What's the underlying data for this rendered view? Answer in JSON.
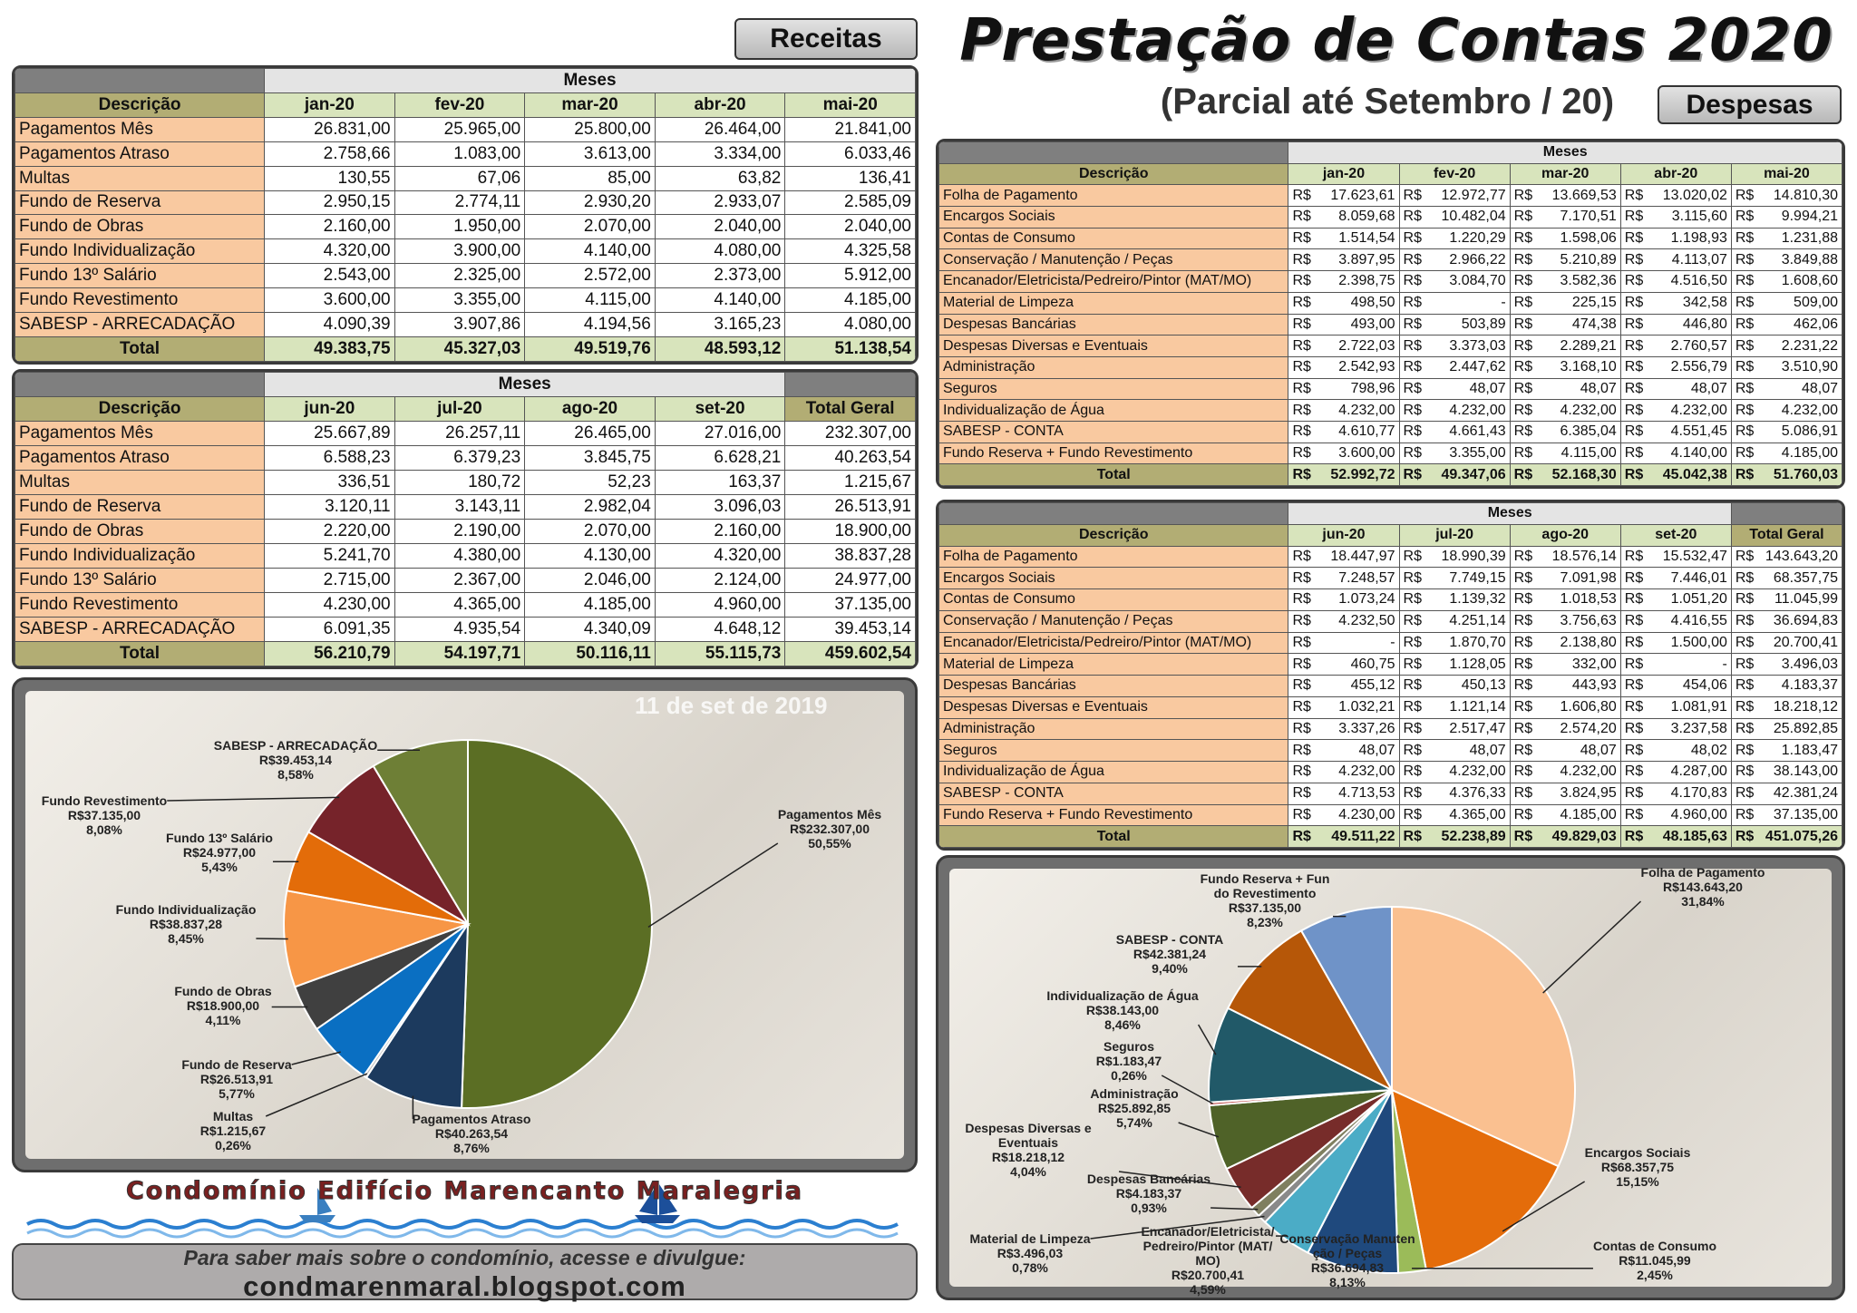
{
  "header": {
    "title": "Prestação de Contas 2020",
    "subtitle": "(Parcial até Setembro / 20)",
    "receitas_button": "Receitas",
    "despesas_button": "Despesas"
  },
  "receitas_tables": [
    {
      "group_label": "Meses",
      "description_header": "Descrição",
      "months": [
        "jan-20",
        "fev-20",
        "mar-20",
        "abr-20",
        "mai-20"
      ],
      "rows": [
        {
          "label": "Pagamentos Mês",
          "values": [
            "26.831,00",
            "25.965,00",
            "25.800,00",
            "26.464,00",
            "21.841,00"
          ]
        },
        {
          "label": "Pagamentos Atraso",
          "values": [
            "2.758,66",
            "1.083,00",
            "3.613,00",
            "3.334,00",
            "6.033,46"
          ]
        },
        {
          "label": "Multas",
          "values": [
            "130,55",
            "67,06",
            "85,00",
            "63,82",
            "136,41"
          ]
        },
        {
          "label": "Fundo de Reserva",
          "values": [
            "2.950,15",
            "2.774,11",
            "2.930,20",
            "2.933,07",
            "2.585,09"
          ]
        },
        {
          "label": "Fundo de Obras",
          "values": [
            "2.160,00",
            "1.950,00",
            "2.070,00",
            "2.040,00",
            "2.040,00"
          ]
        },
        {
          "label": "Fundo Individualização",
          "values": [
            "4.320,00",
            "3.900,00",
            "4.140,00",
            "4.080,00",
            "4.325,58"
          ]
        },
        {
          "label": "Fundo 13º Salário",
          "values": [
            "2.543,00",
            "2.325,00",
            "2.572,00",
            "2.373,00",
            "5.912,00"
          ]
        },
        {
          "label": "Fundo Revestimento",
          "values": [
            "3.600,00",
            "3.355,00",
            "4.115,00",
            "4.140,00",
            "4.185,00"
          ]
        },
        {
          "label": "SABESP - ARRECADAÇÃO",
          "values": [
            "4.090,39",
            "3.907,86",
            "4.194,56",
            "3.165,23",
            "4.080,00"
          ]
        }
      ],
      "total": {
        "label": "Total",
        "values": [
          "49.383,75",
          "45.327,03",
          "49.519,76",
          "48.593,12",
          "51.138,54"
        ]
      }
    },
    {
      "group_label": "Meses",
      "description_header": "Descrição",
      "months": [
        "jun-20",
        "jul-20",
        "ago-20",
        "set-20"
      ],
      "total_header": "Total Geral",
      "rows": [
        {
          "label": "Pagamentos Mês",
          "values": [
            "25.667,89",
            "26.257,11",
            "26.465,00",
            "27.016,00",
            "232.307,00"
          ]
        },
        {
          "label": "Pagamentos Atraso",
          "values": [
            "6.588,23",
            "6.379,23",
            "3.845,75",
            "6.628,21",
            "40.263,54"
          ]
        },
        {
          "label": "Multas",
          "values": [
            "336,51",
            "180,72",
            "52,23",
            "163,37",
            "1.215,67"
          ]
        },
        {
          "label": "Fundo de Reserva",
          "values": [
            "3.120,11",
            "3.143,11",
            "2.982,04",
            "3.096,03",
            "26.513,91"
          ]
        },
        {
          "label": "Fundo de Obras",
          "values": [
            "2.220,00",
            "2.190,00",
            "2.070,00",
            "2.160,00",
            "18.900,00"
          ]
        },
        {
          "label": "Fundo Individualização",
          "values": [
            "5.241,70",
            "4.380,00",
            "4.130,00",
            "4.320,00",
            "38.837,28"
          ]
        },
        {
          "label": "Fundo 13º Salário",
          "values": [
            "2.715,00",
            "2.367,00",
            "2.046,00",
            "2.124,00",
            "24.977,00"
          ]
        },
        {
          "label": "Fundo Revestimento",
          "values": [
            "4.230,00",
            "4.365,00",
            "4.185,00",
            "4.960,00",
            "37.135,00"
          ]
        },
        {
          "label": "SABESP - ARRECADAÇÃO",
          "values": [
            "6.091,35",
            "4.935,54",
            "4.340,09",
            "4.648,12",
            "39.453,14"
          ]
        }
      ],
      "total": {
        "label": "Total",
        "values": [
          "56.210,79",
          "54.197,71",
          "50.116,11",
          "55.115,73",
          "459.602,54"
        ]
      }
    }
  ],
  "despesas_tables": [
    {
      "group_label": "Meses",
      "description_header": "Descrição",
      "months": [
        "jan-20",
        "fev-20",
        "mar-20",
        "abr-20",
        "mai-20"
      ],
      "rows": [
        {
          "label": "Folha de Pagamento",
          "values": [
            "R$ 17.623,61",
            "R$ 12.972,77",
            "R$ 13.669,53",
            "R$ 13.020,02",
            "R$ 14.810,30"
          ]
        },
        {
          "label": "Encargos Sociais",
          "values": [
            "R$ 8.059,68",
            "R$ 10.482,04",
            "R$ 7.170,51",
            "R$ 3.115,60",
            "R$ 9.994,21"
          ]
        },
        {
          "label": "Contas de Consumo",
          "values": [
            "R$ 1.514,54",
            "R$ 1.220,29",
            "R$ 1.598,06",
            "R$ 1.198,93",
            "R$ 1.231,88"
          ]
        },
        {
          "label": "Conservação / Manutenção / Peças",
          "values": [
            "R$ 3.897,95",
            "R$ 2.966,22",
            "R$ 5.210,89",
            "R$ 4.113,07",
            "R$ 3.849,88"
          ]
        },
        {
          "label": "Encanador/Eletricista/Pedreiro/Pintor (MAT/MO)",
          "values": [
            "R$ 2.398,75",
            "R$ 3.084,70",
            "R$ 3.582,36",
            "R$ 4.516,50",
            "R$ 1.608,60"
          ]
        },
        {
          "label": "Material de Limpeza",
          "values": [
            "R$ 498,50",
            "R$ -",
            "R$ 225,15",
            "R$ 342,58",
            "R$ 509,00"
          ]
        },
        {
          "label": "Despesas Bancárias",
          "values": [
            "R$ 493,00",
            "R$ 503,89",
            "R$ 474,38",
            "R$ 446,80",
            "R$ 462,06"
          ]
        },
        {
          "label": "Despesas Diversas e Eventuais",
          "values": [
            "R$ 2.722,03",
            "R$ 3.373,03",
            "R$ 2.289,21",
            "R$ 2.760,57",
            "R$ 2.231,22"
          ]
        },
        {
          "label": "Administração",
          "values": [
            "R$ 2.542,93",
            "R$ 2.447,62",
            "R$ 3.168,10",
            "R$ 2.556,79",
            "R$ 3.510,90"
          ]
        },
        {
          "label": "Seguros",
          "values": [
            "R$ 798,96",
            "R$ 48,07",
            "R$ 48,07",
            "R$ 48,07",
            "R$ 48,07"
          ]
        },
        {
          "label": "Individualização de Água",
          "values": [
            "R$ 4.232,00",
            "R$ 4.232,00",
            "R$ 4.232,00",
            "R$ 4.232,00",
            "R$ 4.232,00"
          ]
        },
        {
          "label": "SABESP - CONTA",
          "values": [
            "R$ 4.610,77",
            "R$ 4.661,43",
            "R$ 6.385,04",
            "R$ 4.551,45",
            "R$ 5.086,91"
          ]
        },
        {
          "label": "Fundo Reserva + Fundo Revestimento",
          "values": [
            "R$ 3.600,00",
            "R$ 3.355,00",
            "R$ 4.115,00",
            "R$ 4.140,00",
            "R$ 4.185,00"
          ]
        }
      ],
      "total": {
        "label": "Total",
        "values": [
          "R$ 52.992,72",
          "R$ 49.347,06",
          "R$ 52.168,30",
          "R$ 45.042,38",
          "R$ 51.760,03"
        ]
      }
    },
    {
      "group_label": "Meses",
      "description_header": "Descrição",
      "months": [
        "jun-20",
        "jul-20",
        "ago-20",
        "set-20"
      ],
      "total_header": "Total Geral",
      "rows": [
        {
          "label": "Folha de Pagamento",
          "values": [
            "R$ 18.447,97",
            "R$ 18.990,39",
            "R$ 18.576,14",
            "R$ 15.532,47",
            "R$ 143.643,20"
          ]
        },
        {
          "label": "Encargos Sociais",
          "values": [
            "R$ 7.248,57",
            "R$ 7.749,15",
            "R$ 7.091,98",
            "R$ 7.446,01",
            "R$ 68.357,75"
          ]
        },
        {
          "label": "Contas de Consumo",
          "values": [
            "R$ 1.073,24",
            "R$ 1.139,32",
            "R$ 1.018,53",
            "R$ 1.051,20",
            "R$ 11.045,99"
          ]
        },
        {
          "label": "Conservação / Manutenção / Peças",
          "values": [
            "R$ 4.232,50",
            "R$ 4.251,14",
            "R$ 3.756,63",
            "R$ 4.416,55",
            "R$ 36.694,83"
          ]
        },
        {
          "label": "Encanador/Eletricista/Pedreiro/Pintor (MAT/MO)",
          "values": [
            "R$ -",
            "R$ 1.870,70",
            "R$ 2.138,80",
            "R$ 1.500,00",
            "R$ 20.700,41"
          ]
        },
        {
          "label": "Material de Limpeza",
          "values": [
            "R$ 460,75",
            "R$ 1.128,05",
            "R$ 332,00",
            "R$ -",
            "R$ 3.496,03"
          ]
        },
        {
          "label": "Despesas Bancárias",
          "values": [
            "R$ 455,12",
            "R$ 450,13",
            "R$ 443,93",
            "R$ 454,06",
            "R$ 4.183,37"
          ]
        },
        {
          "label": "Despesas Diversas e Eventuais",
          "values": [
            "R$ 1.032,21",
            "R$ 1.121,14",
            "R$ 1.606,80",
            "R$ 1.081,91",
            "R$ 18.218,12"
          ]
        },
        {
          "label": "Administração",
          "values": [
            "R$ 3.337,26",
            "R$ 2.517,47",
            "R$ 2.574,20",
            "R$ 3.237,58",
            "R$ 25.892,85"
          ]
        },
        {
          "label": "Seguros",
          "values": [
            "R$ 48,07",
            "R$ 48,07",
            "R$ 48,07",
            "R$ 48,02",
            "R$ 1.183,47"
          ]
        },
        {
          "label": "Individualização de Água",
          "values": [
            "R$ 4.232,00",
            "R$ 4.232,00",
            "R$ 4.232,00",
            "R$ 4.287,00",
            "R$ 38.143,00"
          ]
        },
        {
          "label": "SABESP - CONTA",
          "values": [
            "R$ 4.713,53",
            "R$ 4.376,33",
            "R$ 3.824,95",
            "R$ 4.170,83",
            "R$ 42.381,24"
          ]
        },
        {
          "label": "Fundo Reserva + Fundo Revestimento",
          "values": [
            "R$ 4.230,00",
            "R$ 4.365,00",
            "R$ 4.185,00",
            "R$ 4.960,00",
            "R$ 37.135,00"
          ]
        }
      ],
      "total": {
        "label": "Total",
        "values": [
          "R$ 49.511,22",
          "R$ 52.238,89",
          "R$ 49.829,03",
          "R$ 48.185,63",
          "R$ 451.075,26"
        ]
      }
    }
  ],
  "receitas_chart": {
    "type": "pie",
    "photo_stamp": "11 de set de 2019",
    "categories": [
      "Pagamentos Mês",
      "Pagamentos Atraso",
      "Multas",
      "Fundo de Reserva",
      "Fundo de Obras",
      "Fundo Individualização",
      "Fundo 13º Salário",
      "Fundo Revestimento",
      "SABESP - ARRECADAÇÃO"
    ],
    "values": [
      232307.0,
      40263.54,
      1215.67,
      26513.91,
      18900.0,
      38837.28,
      24977.0,
      37135.0,
      39453.14
    ],
    "value_labels": [
      "R$232.307,00",
      "R$40.263,54",
      "R$1.215,67",
      "R$26.513,91",
      "R$18.900,00",
      "R$38.837,28",
      "R$24.977,00",
      "R$37.135,00",
      "R$39.453,14"
    ],
    "percent_labels": [
      "50,55%",
      "8,76%",
      "0,26%",
      "5,77%",
      "4,11%",
      "8,45%",
      "5,43%",
      "8,08%",
      "8,58%"
    ],
    "colors": [
      "#5b6e24",
      "#1c3a5e",
      "#bfbfbf",
      "#0a6fc2",
      "#404040",
      "#f79646",
      "#e36c09",
      "#76232a",
      "#6e7f36"
    ]
  },
  "despesas_chart": {
    "type": "pie",
    "categories": [
      "Folha de Pagamento",
      "Encargos Sociais",
      "Contas de Consumo",
      "Conservação Manutenção / Peças",
      "Encanador/Eletricista/Pedreiro/Pintor (MAT/MO)",
      "Material de Limpeza",
      "Despesas Bancárias",
      "Despesas Diversas e Eventuais",
      "Administração",
      "Seguros",
      "Individualização de Água",
      "SABESP - CONTA",
      "Fundo Reserva + Fundo Revestimento"
    ],
    "values": [
      143643.2,
      68357.75,
      11045.99,
      36694.83,
      20700.41,
      3496.03,
      4183.37,
      18218.12,
      25892.85,
      1183.47,
      38143.0,
      42381.24,
      37135.0
    ],
    "value_labels": [
      "R$143.643,20",
      "R$68.357,75",
      "R$11.045,99",
      "R$36.694,83",
      "R$20.700,41",
      "R$3.496,03",
      "R$4.183,37",
      "R$18.218,12",
      "R$25.892,85",
      "R$1.183,47",
      "R$38.143,00",
      "R$42.381,24",
      "R$37.135,00"
    ],
    "percent_labels": [
      "31,84%",
      "15,15%",
      "2,45%",
      "8,13%",
      "4,59%",
      "0,78%",
      "0,93%",
      "4,04%",
      "5,74%",
      "0,26%",
      "8,46%",
      "9,40%",
      "8,23%"
    ],
    "colors": [
      "#fac090",
      "#e46c0a",
      "#9bbb59",
      "#1f497d",
      "#4bacc6",
      "#8a8a8a",
      "#7f7f5f",
      "#772c2a",
      "#4f6228",
      "#c0504d",
      "#215968",
      "#b65708",
      "#6f93c8"
    ]
  },
  "footer": {
    "banner": "Condomínio Edifício Marencanto Maralegria",
    "text": "Para saber mais sobre o condomínio, acesse e divulgue:",
    "url": "condmarenmaral.blogspot.com"
  }
}
